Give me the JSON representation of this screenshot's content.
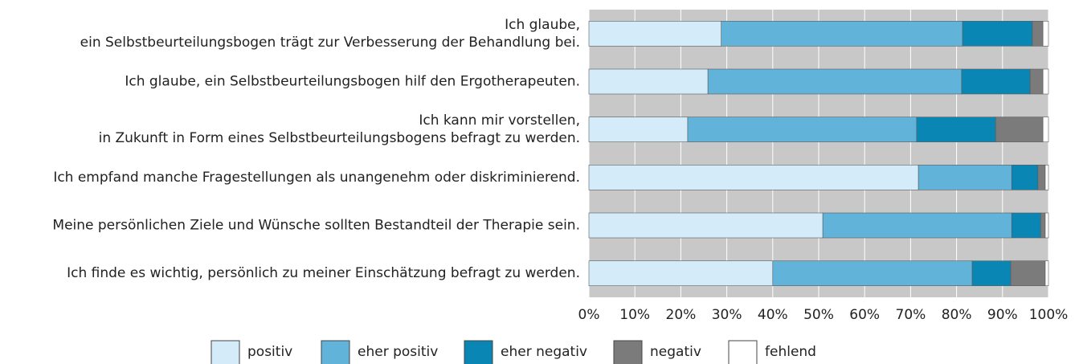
{
  "chart_data": {
    "type": "stacked-barh",
    "categories": [
      [
        "Ich glaube,",
        "ein Selbstbeurteilungsbogen trägt zur Verbesserung der Behandlung bei."
      ],
      [
        "Ich glaube, ein Selbstbeurteilungsbogen hilf den Ergotherapeuten."
      ],
      [
        "Ich kann mir vorstellen,",
        "in Zukunft in Form eines Selbstbeurteilungsbogens befragt zu werden."
      ],
      [
        "Ich empfand manche Fragestellungen als unangenehm oder diskriminierend."
      ],
      [
        "Meine persönlichen Ziele und Wünsche sollten Bestandteil der Therapie sein."
      ],
      [
        "Ich finde es wichtig, persönlich zu meiner Einschätzung befragt zu werden."
      ]
    ],
    "series": [
      {
        "name": "positiv",
        "color": "#d4ecf9",
        "values": [
          28.8,
          25.9,
          21.5,
          71.7,
          50.9,
          40.0
        ]
      },
      {
        "name": "eher positiv",
        "color": "#62b3da",
        "values": [
          52.5,
          55.2,
          49.8,
          20.3,
          41.1,
          43.4
        ]
      },
      {
        "name": "eher negativ",
        "color": "#0a86b4",
        "values": [
          15.2,
          14.9,
          17.2,
          5.7,
          6.3,
          8.4
        ]
      },
      {
        "name": "negativ",
        "color": "#7b7b7b",
        "values": [
          2.3,
          2.8,
          10.3,
          1.6,
          1.0,
          7.5
        ]
      },
      {
        "name": "fehlend",
        "color": "#ffffff",
        "values": [
          1.2,
          1.2,
          1.2,
          0.7,
          0.7,
          0.7
        ]
      }
    ],
    "xlim": [
      0,
      100
    ],
    "xticks": [
      {
        "value": 0,
        "label": "0%"
      },
      {
        "value": 10,
        "label": "10%"
      },
      {
        "value": 20,
        "label": "20%"
      },
      {
        "value": 30,
        "label": "30%"
      },
      {
        "value": 40,
        "label": "40%"
      },
      {
        "value": 50,
        "label": "50%"
      },
      {
        "value": 60,
        "label": "60%"
      },
      {
        "value": 70,
        "label": "70%"
      },
      {
        "value": 80,
        "label": "80%"
      },
      {
        "value": 90,
        "label": "90%"
      },
      {
        "value": 100,
        "label": "100%"
      }
    ],
    "grid": true,
    "legend": "bottom"
  }
}
